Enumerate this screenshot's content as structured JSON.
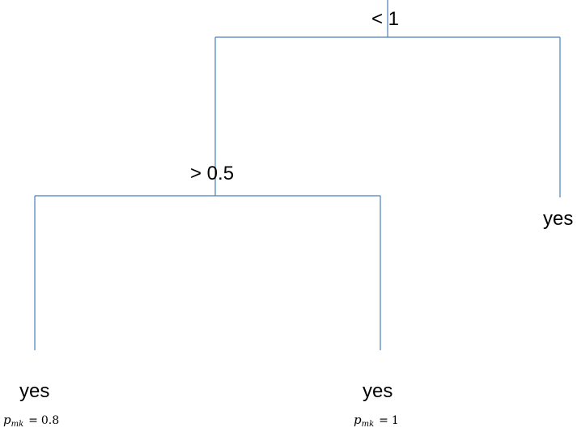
{
  "tree": {
    "root": {
      "condition": "< 1"
    },
    "left_node": {
      "condition": "> 0.5"
    },
    "right_leaf": {
      "label": "yes"
    },
    "left_left_leaf": {
      "label": "yes",
      "p_symbol": "p",
      "p_subscript": "mk",
      "p_equals": "=",
      "p_value": "0.8"
    },
    "left_right_leaf": {
      "label": "yes",
      "p_symbol": "p",
      "p_subscript": "mk",
      "p_equals": "=",
      "p_value": "1"
    }
  },
  "style": {
    "line_color": "#4a7ebb"
  }
}
